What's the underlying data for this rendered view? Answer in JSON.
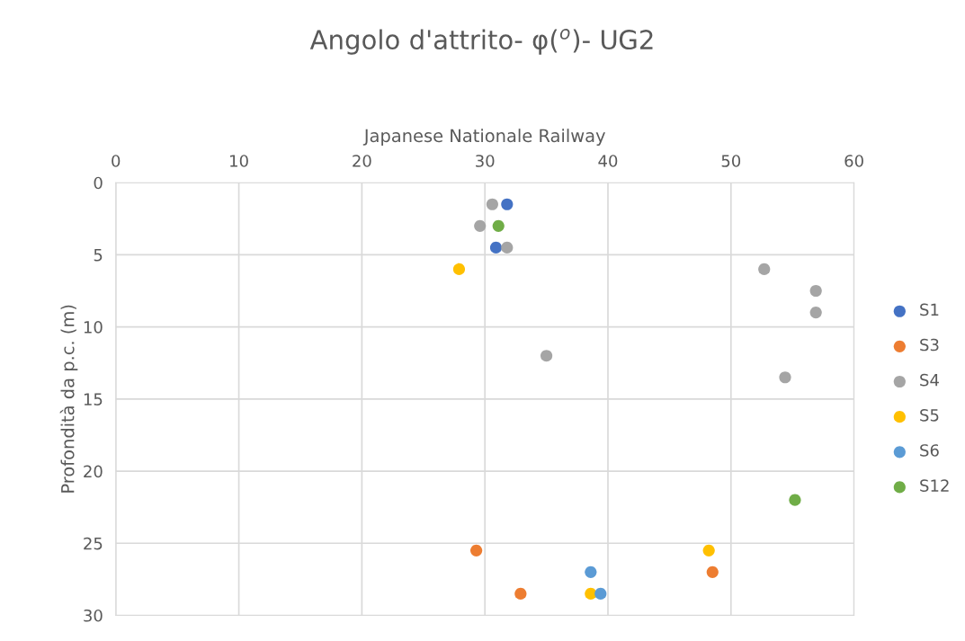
{
  "chart_data": {
    "type": "scatter",
    "title": "Angolo d'attrito- φ($^{o}$)- UG2",
    "xlabel": "Japanese Nationale Railway",
    "ylabel": "Profondità da p.c. (m)",
    "xlim": [
      0,
      60
    ],
    "xticks": [
      0,
      10,
      20,
      30,
      40,
      50,
      60
    ],
    "ylim": [
      30,
      0
    ],
    "yticks": [
      0,
      5,
      10,
      15,
      20,
      25,
      30
    ],
    "grid": true,
    "legend": "right",
    "marker": "circle",
    "series": [
      {
        "name": "S1",
        "color": "#4472c4",
        "x": [
          31.8,
          30.9
        ],
        "values": [
          1.5,
          4.5
        ]
      },
      {
        "name": "S3",
        "color": "#ed7d31",
        "x": [
          29.3,
          48.5,
          32.9
        ],
        "values": [
          25.5,
          27,
          28.5
        ]
      },
      {
        "name": "S4",
        "color": "#a5a5a5",
        "x": [
          30.6,
          29.6,
          31.8,
          52.7,
          56.9,
          56.9,
          35.0,
          54.4
        ],
        "values": [
          1.5,
          3,
          4.5,
          6,
          7.5,
          9,
          12,
          13.5
        ]
      },
      {
        "name": "S5",
        "color": "#ffc000",
        "x": [
          27.9,
          48.2,
          38.6
        ],
        "values": [
          6,
          25.5,
          28.5
        ]
      },
      {
        "name": "S6",
        "color": "#5b9bd5",
        "x": [
          38.6,
          39.4
        ],
        "values": [
          27,
          28.5
        ]
      },
      {
        "name": "S12",
        "color": "#70ad47",
        "x": [
          31.1,
          55.2
        ],
        "values": [
          3,
          22
        ]
      }
    ]
  }
}
